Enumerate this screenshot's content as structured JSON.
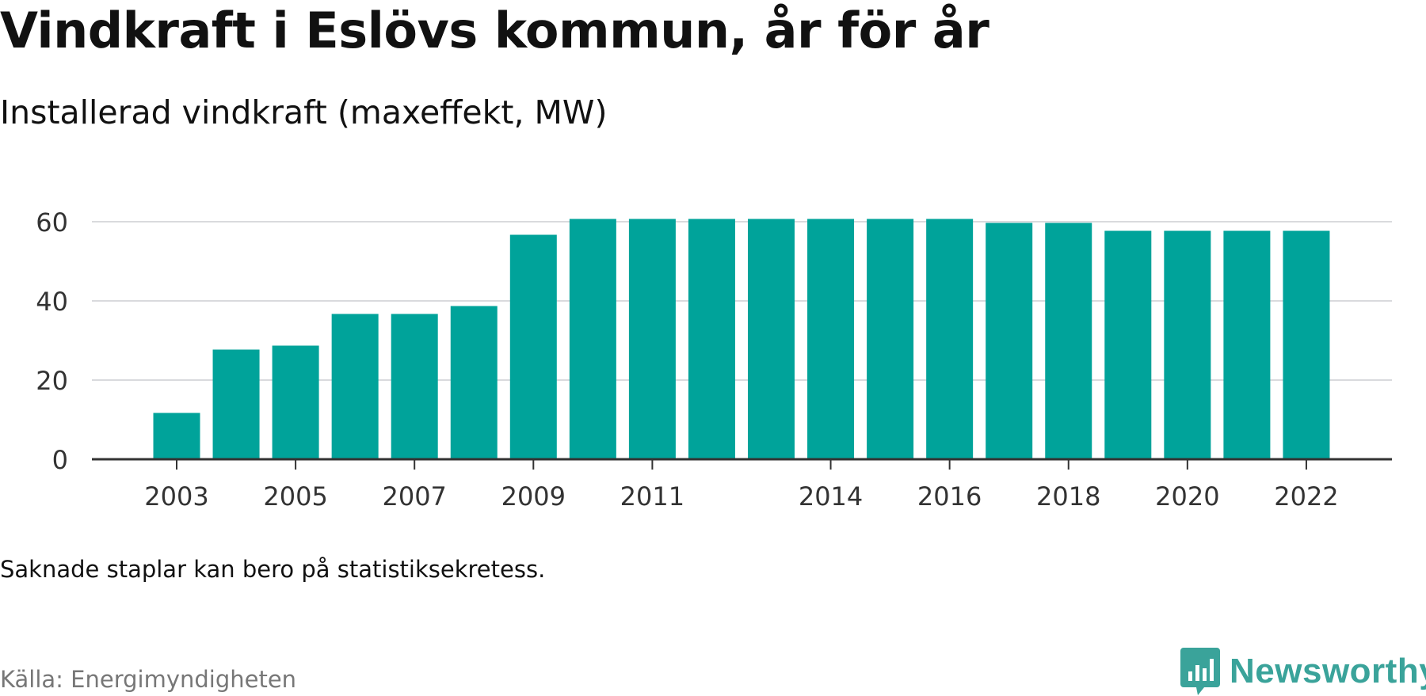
{
  "header": {
    "title": "Vindkraft i Eslövs kommun, år för år",
    "subtitle": "Installerad vindkraft (maxeffekt, MW)"
  },
  "footer": {
    "note": "Saknade staplar kan bero på statistiksekretess.",
    "source": "Källa: Energimyndigheten",
    "brand": "Newsworthy"
  },
  "colors": {
    "bar": "#00a39a",
    "grid": "#d9dadd",
    "axis": "#333333",
    "tick_text": "#333333",
    "brand": "#3aa39a"
  },
  "chart_data": {
    "type": "bar",
    "title": "Vindkraft i Eslövs kommun, år för år",
    "subtitle": "Installerad vindkraft (maxeffekt, MW)",
    "xlabel": "",
    "ylabel": "",
    "categories": [
      2003,
      2004,
      2005,
      2006,
      2007,
      2008,
      2009,
      2010,
      2011,
      2012,
      2013,
      2014,
      2015,
      2016,
      2017,
      2018,
      2019,
      2020,
      2021,
      2022
    ],
    "values": [
      11.7,
      27.7,
      28.7,
      36.7,
      36.7,
      38.7,
      56.7,
      60.7,
      60.7,
      60.7,
      60.7,
      60.7,
      60.7,
      60.7,
      59.7,
      59.7,
      57.7,
      57.7,
      57.7,
      57.7
    ],
    "x_tick_labels": [
      2003,
      2005,
      2007,
      2009,
      2011,
      2014,
      2016,
      2018,
      2020,
      2022
    ],
    "y_ticks": [
      0,
      20,
      40,
      60
    ],
    "ylim": [
      0,
      65
    ],
    "grid": true,
    "legend": "none"
  }
}
